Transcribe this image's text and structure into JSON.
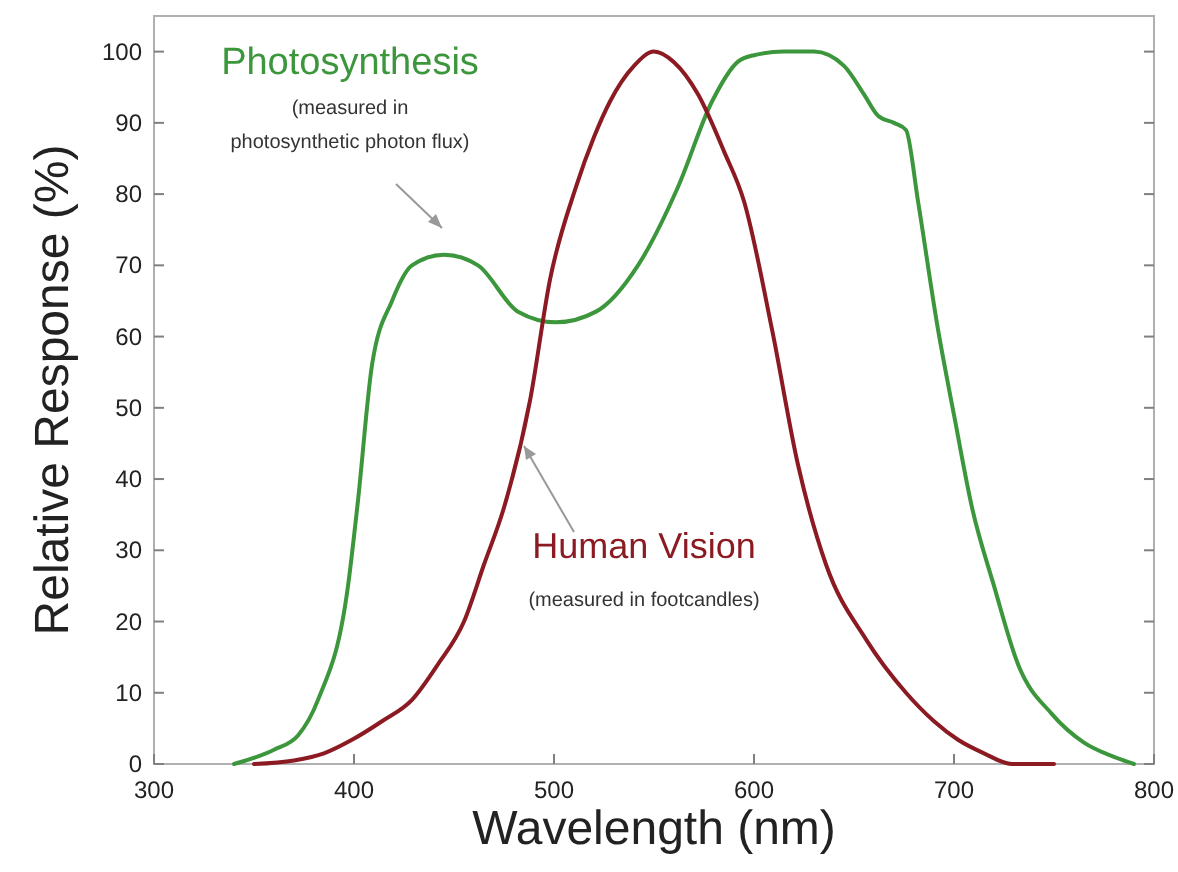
{
  "chart_data": {
    "type": "line",
    "xlabel": "Wavelength (nm)",
    "ylabel": "Relative Response  (%)",
    "xlim": [
      300,
      800
    ],
    "ylim": [
      0,
      105
    ],
    "xticks": [
      300,
      400,
      500,
      600,
      700,
      800
    ],
    "yticks": [
      0,
      10,
      20,
      30,
      40,
      50,
      60,
      70,
      80,
      90,
      100
    ],
    "grid": false,
    "marker": "none",
    "line_style": "solid",
    "series": [
      {
        "name": "Photosynthesis",
        "color": "#3c963c",
        "x": [
          340,
          360,
          372,
          382,
          397,
          402,
          409,
          419,
          429,
          445,
          462,
          482,
          501,
          521,
          542,
          562,
          579,
          592,
          600,
          615,
          630,
          645,
          655,
          662,
          670,
          676,
          682,
          692,
          700,
          709,
          720,
          732,
          749,
          765,
          780,
          790
        ],
        "values": [
          0,
          2,
          4,
          9,
          25,
          37,
          56,
          65,
          70,
          71.5,
          70,
          63.5,
          62,
          63.5,
          70,
          81,
          93,
          98.6,
          99.5,
          100,
          100,
          98,
          94,
          91,
          90,
          89,
          79,
          61,
          49,
          36,
          25,
          14,
          7,
          3,
          1,
          0
        ]
      },
      {
        "name": "Human Vision",
        "color": "#8b1a22",
        "x": [
          350,
          370,
          385,
          399,
          414,
          429,
          442,
          455,
          465,
          475,
          488,
          498,
          511,
          520,
          528,
          540,
          550,
          560,
          572,
          585,
          595,
          609,
          622,
          636,
          656,
          676,
          690,
          702,
          715,
          729,
          750
        ],
        "values": [
          0,
          0.5,
          1.5,
          3.4,
          6,
          9,
          14,
          20,
          28,
          36,
          51,
          68,
          81,
          88,
          93,
          98,
          100,
          98.5,
          94,
          86,
          79,
          61,
          42,
          28,
          17.5,
          10,
          6,
          3.4,
          1.5,
          0,
          0
        ]
      }
    ],
    "annotations": [
      "(measured in photosynthetic photon flux)",
      "(measured in footcandles)"
    ]
  }
}
